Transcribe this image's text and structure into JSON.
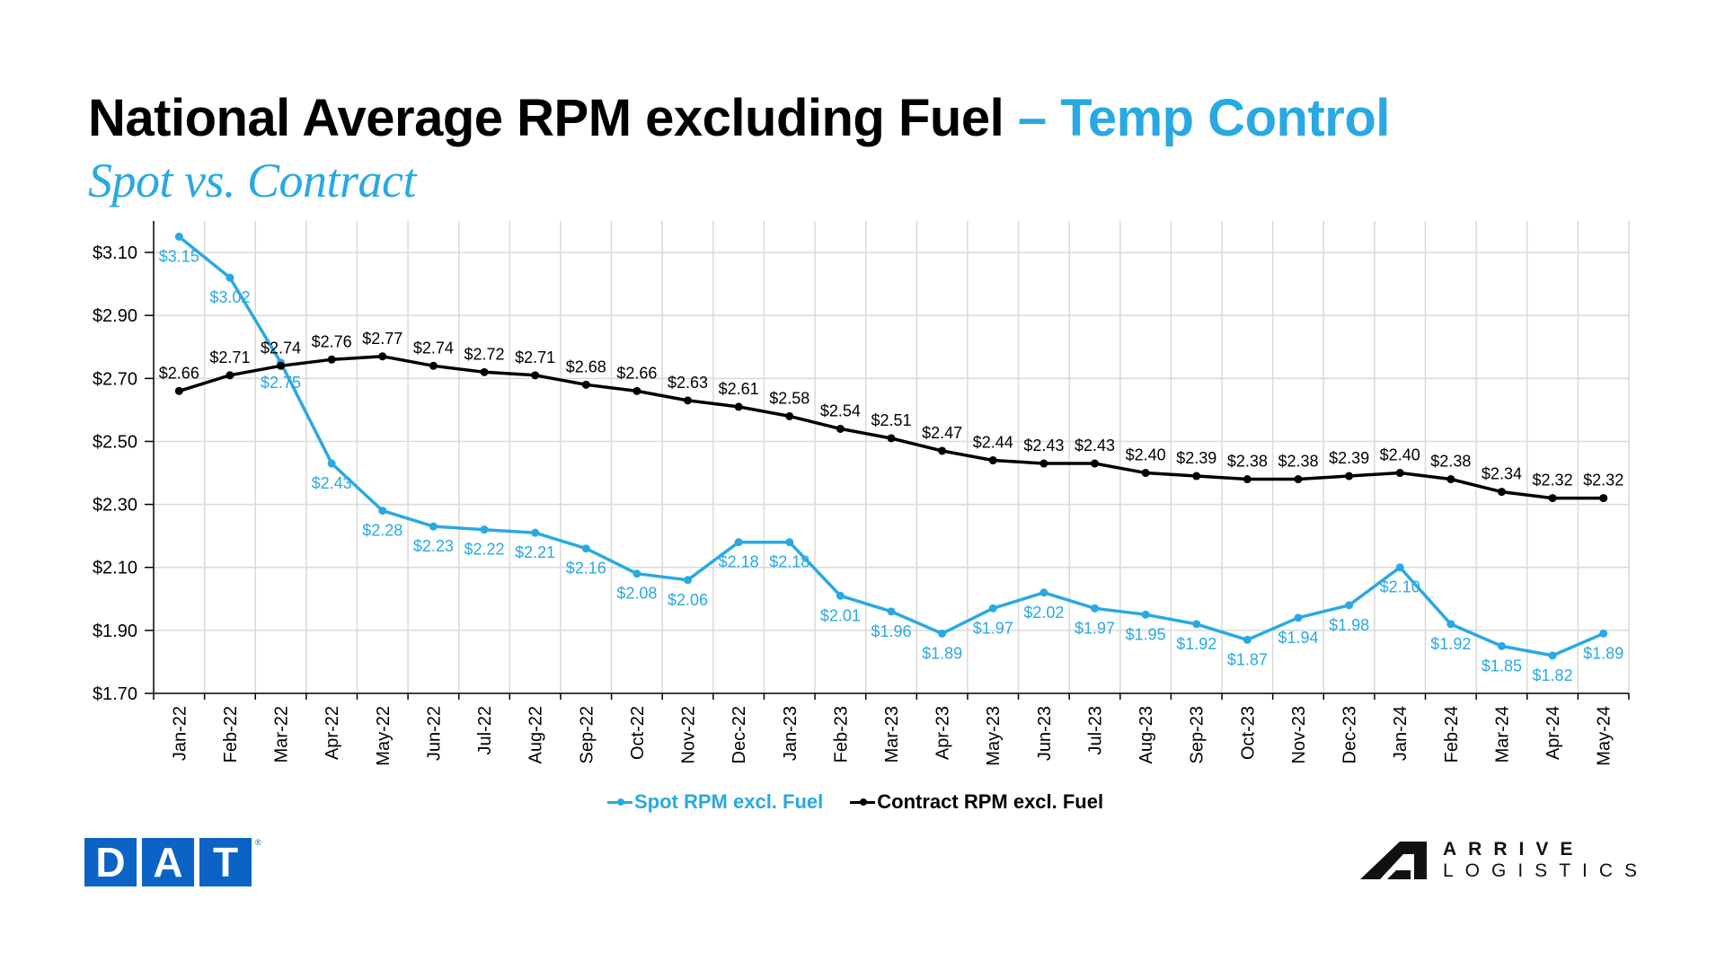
{
  "header": {
    "title_main": "National Average RPM excluding Fuel",
    "title_accent": " – Temp Control",
    "subtitle": "Spot vs. Contract"
  },
  "colors": {
    "accent": "#29a9e1",
    "spot": "#29a9e1",
    "contract": "#000000",
    "grid": "#d9d9d9",
    "dat_blue": "#0b63c5"
  },
  "legend": [
    {
      "label": "Spot RPM excl. Fuel",
      "color": "#29a9e1"
    },
    {
      "label": "Contract RPM excl. Fuel",
      "color": "#000000"
    }
  ],
  "logos": {
    "dat": [
      "D",
      "A",
      "T"
    ],
    "dat_reg": "®",
    "arrive_top": "ARRIVE",
    "arrive_bottom": "LOGISTICS"
  },
  "chart_data": {
    "type": "line",
    "title": "National Average RPM excluding Fuel – Temp Control",
    "subtitle": "Spot vs. Contract",
    "xlabel": "",
    "ylabel": "",
    "ylim": [
      1.7,
      3.2
    ],
    "yticks": [
      1.7,
      1.9,
      2.1,
      2.3,
      2.5,
      2.7,
      2.9,
      3.1
    ],
    "ytick_labels": [
      "$1.70",
      "$1.90",
      "$2.10",
      "$2.30",
      "$2.50",
      "$2.70",
      "$2.90",
      "$3.10"
    ],
    "grid": true,
    "legend_position": "bottom",
    "categories": [
      "Jan-22",
      "Feb-22",
      "Mar-22",
      "Apr-22",
      "May-22",
      "Jun-22",
      "Jul-22",
      "Aug-22",
      "Sep-22",
      "Oct-22",
      "Nov-22",
      "Dec-22",
      "Jan-23",
      "Feb-23",
      "Mar-23",
      "Apr-23",
      "May-23",
      "Jun-23",
      "Jul-23",
      "Aug-23",
      "Sep-23",
      "Oct-23",
      "Nov-23",
      "Dec-23",
      "Jan-24",
      "Feb-24",
      "Mar-24",
      "Apr-24",
      "May-24"
    ],
    "series": [
      {
        "name": "Spot RPM excl. Fuel",
        "color": "#29a9e1",
        "label_position": "below",
        "values": [
          3.15,
          3.02,
          2.75,
          2.43,
          2.28,
          2.23,
          2.22,
          2.21,
          2.16,
          2.08,
          2.06,
          2.18,
          2.18,
          2.01,
          1.96,
          1.89,
          1.97,
          2.02,
          1.97,
          1.95,
          1.92,
          1.87,
          1.94,
          1.98,
          2.1,
          1.92,
          1.85,
          1.82,
          1.89
        ],
        "labels": [
          "$3.15",
          "$3.02",
          "$2.75",
          "$2.43",
          "$2.28",
          "$2.23",
          "$2.22",
          "$2.21",
          "$2.16",
          "$2.08",
          "$2.06",
          "$2.18",
          "$2.18",
          "$2.01",
          "$1.96",
          "$1.89",
          "$1.97",
          "$2.02",
          "$1.97",
          "$1.95",
          "$1.92",
          "$1.87",
          "$1.94",
          "$1.98",
          "$2.10",
          "$1.92",
          "$1.85",
          "$1.82",
          "$1.89"
        ]
      },
      {
        "name": "Contract RPM excl. Fuel",
        "color": "#000000",
        "label_position": "above",
        "values": [
          2.66,
          2.71,
          2.74,
          2.76,
          2.77,
          2.74,
          2.72,
          2.71,
          2.68,
          2.66,
          2.63,
          2.61,
          2.58,
          2.54,
          2.51,
          2.47,
          2.44,
          2.43,
          2.43,
          2.4,
          2.39,
          2.38,
          2.38,
          2.39,
          2.4,
          2.38,
          2.34,
          2.32,
          2.32
        ],
        "labels": [
          "$2.66",
          "$2.71",
          "$2.74",
          "$2.76",
          "$2.77",
          "$2.74",
          "$2.72",
          "$2.71",
          "$2.68",
          "$2.66",
          "$2.63",
          "$2.61",
          "$2.58",
          "$2.54",
          "$2.51",
          "$2.47",
          "$2.44",
          "$2.43",
          "$2.43",
          "$2.40",
          "$2.39",
          "$2.38",
          "$2.38",
          "$2.39",
          "$2.40",
          "$2.38",
          "$2.34",
          "$2.32",
          "$2.32"
        ]
      }
    ]
  }
}
